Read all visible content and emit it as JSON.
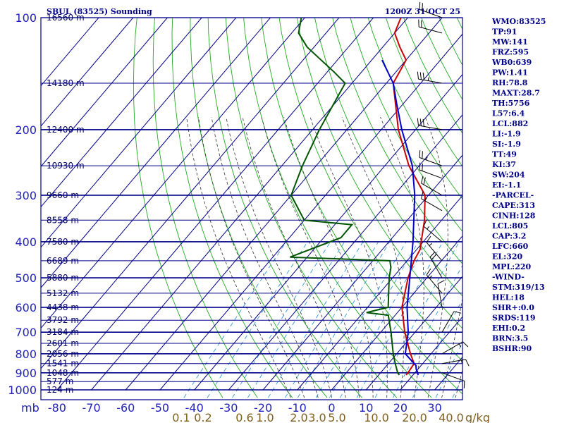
{
  "header": {
    "station": "SBUL (83525) Sounding",
    "time": "1200Z 31 OCT 25"
  },
  "chart_data": {
    "type": "skew-t",
    "ylabel": "mb",
    "pressure_ticks": [
      100,
      200,
      300,
      400,
      500,
      600,
      700,
      800,
      900,
      1000
    ],
    "temp_ticks": [
      -80,
      -70,
      -60,
      -50,
      -40,
      -30,
      -20,
      -10,
      0,
      10,
      20,
      30
    ],
    "temp_tick_labels": [
      "-80",
      "-70",
      "-60",
      "-50",
      "-40",
      "-30",
      "-20",
      "-10",
      "0",
      "10",
      "20",
      "30"
    ],
    "mixing_ratio_labels": [
      "0.1",
      "0.2",
      "0.6",
      "1.0",
      "2.0",
      "3.0",
      "5.0",
      "10.0",
      "20.0",
      "40.0"
    ],
    "mixing_ratio_unit": "g/kg",
    "height_levels": [
      {
        "p": 100,
        "label": "16560 m"
      },
      {
        "p": 150,
        "label": "14180 m"
      },
      {
        "p": 200,
        "label": "12400 m"
      },
      {
        "p": 250,
        "label": "10930 m"
      },
      {
        "p": 300,
        "label": "9660 m"
      },
      {
        "p": 350,
        "label": "8558 m"
      },
      {
        "p": 400,
        "label": "7580 m"
      },
      {
        "p": 450,
        "label": "6689 m"
      },
      {
        "p": 500,
        "label": "5880 m"
      },
      {
        "p": 550,
        "label": "5132 m"
      },
      {
        "p": 600,
        "label": "4438 m"
      },
      {
        "p": 650,
        "label": "3792 m"
      },
      {
        "p": 700,
        "label": "3184 m"
      },
      {
        "p": 750,
        "label": "2601 m"
      },
      {
        "p": 800,
        "label": "2056 m"
      },
      {
        "p": 850,
        "label": "1541 m"
      },
      {
        "p": 900,
        "label": "1048 m"
      },
      {
        "p": 950,
        "label": "577 m"
      },
      {
        "p": 1000,
        "label": "124 m"
      }
    ],
    "series": [
      {
        "color": "#cc0000",
        "kind": "temperature",
        "points": [
          {
            "p": 912,
            "t": 18.0
          },
          {
            "p": 900,
            "t": 18.0
          },
          {
            "p": 850,
            "t": 17.5
          },
          {
            "p": 800,
            "t": 14.0
          },
          {
            "p": 700,
            "t": 7.0
          },
          {
            "p": 600,
            "t": 0.0
          },
          {
            "p": 500,
            "t": -5.5
          },
          {
            "p": 450,
            "t": -8.0
          },
          {
            "p": 420,
            "t": -9.0
          },
          {
            "p": 350,
            "t": -15.0
          },
          {
            "p": 300,
            "t": -21.0
          },
          {
            "p": 250,
            "t": -33.0
          },
          {
            "p": 200,
            "t": -45.0
          },
          {
            "p": 150,
            "t": -58.0
          },
          {
            "p": 130,
            "t": -60.0
          },
          {
            "p": 120,
            "t": -65.0
          },
          {
            "p": 110,
            "t": -70.0
          },
          {
            "p": 100,
            "t": -72.0
          }
        ]
      },
      {
        "color": "#005500",
        "kind": "dewpoint",
        "points": [
          {
            "p": 912,
            "t": 16.0
          },
          {
            "p": 900,
            "t": 15.0
          },
          {
            "p": 850,
            "t": 12.0
          },
          {
            "p": 800,
            "t": 9.0
          },
          {
            "p": 700,
            "t": 3.0
          },
          {
            "p": 630,
            "t": -2.0
          },
          {
            "p": 620,
            "t": -9.0
          },
          {
            "p": 600,
            "t": -4.0
          },
          {
            "p": 500,
            "t": -11.0
          },
          {
            "p": 470,
            "t": -13.0
          },
          {
            "p": 450,
            "t": -15.0
          },
          {
            "p": 440,
            "t": -45.0
          },
          {
            "p": 390,
            "t": -35.0
          },
          {
            "p": 360,
            "t": -35.0
          },
          {
            "p": 350,
            "t": -50.0
          },
          {
            "p": 300,
            "t": -60.0
          },
          {
            "p": 250,
            "t": -64.0
          },
          {
            "p": 200,
            "t": -68.0
          },
          {
            "p": 150,
            "t": -72.0
          },
          {
            "p": 140,
            "t": -78.0
          },
          {
            "p": 120,
            "t": -92.0
          },
          {
            "p": 110,
            "t": -98.0
          },
          {
            "p": 100,
            "t": -101.0
          }
        ]
      },
      {
        "color": "#0000cc",
        "kind": "parcel",
        "points": [
          {
            "p": 912,
            "t": 21.5
          },
          {
            "p": 880,
            "t": 19.5
          },
          {
            "p": 860,
            "t": 18.5
          },
          {
            "p": 800,
            "t": 12.5
          },
          {
            "p": 700,
            "t": 8.0
          },
          {
            "p": 600,
            "t": 1.5
          },
          {
            "p": 500,
            "t": -5.0
          },
          {
            "p": 400,
            "t": -13.0
          },
          {
            "p": 300,
            "t": -24.0
          },
          {
            "p": 250,
            "t": -32.0
          },
          {
            "p": 200,
            "t": -44.0
          },
          {
            "p": 170,
            "t": -52.0
          },
          {
            "p": 150,
            "t": -58.0
          },
          {
            "p": 130,
            "t": -67.0
          }
        ]
      }
    ],
    "wind_barbs": [
      {
        "p": 100,
        "dir": 290,
        "spd": 25
      },
      {
        "p": 110,
        "dir": 285,
        "spd": 20
      },
      {
        "p": 150,
        "dir": 280,
        "spd": 35
      },
      {
        "p": 200,
        "dir": 280,
        "spd": 30
      },
      {
        "p": 250,
        "dir": 290,
        "spd": 25
      },
      {
        "p": 270,
        "dir": 290,
        "spd": 20
      },
      {
        "p": 300,
        "dir": 300,
        "spd": 20
      },
      {
        "p": 330,
        "dir": 300,
        "spd": 15
      },
      {
        "p": 400,
        "dir": 310,
        "spd": 15
      },
      {
        "p": 450,
        "dir": 320,
        "spd": 15
      },
      {
        "p": 500,
        "dir": 330,
        "spd": 20
      },
      {
        "p": 550,
        "dir": 320,
        "spd": 15
      },
      {
        "p": 600,
        "dir": 350,
        "spd": 10
      },
      {
        "p": 700,
        "dir": 30,
        "spd": 10
      },
      {
        "p": 800,
        "dir": 60,
        "spd": 15
      },
      {
        "p": 850,
        "dir": 80,
        "spd": 15
      },
      {
        "p": 900,
        "dir": 110,
        "spd": 10
      }
    ]
  },
  "stats": [
    "WMO:83525",
    "TP:91",
    "MW:141",
    "FRZ:595",
    "WB0:639",
    "PW:1.41",
    "RH:78.8",
    "MAXT:28.7",
    "TH:5756",
    "L57:6.4",
    "LCL:882",
    "LI:-1.9",
    "SI:-1.9",
    "TT:49",
    "KI:37",
    "SW:204",
    "EI:-1.1",
    "-PARCEL-",
    "CAPE:313",
    "CINH:128",
    "LCL:805",
    "CAP:3.2",
    "LFC:660",
    "EL:320",
    "MPL:220",
    "-WIND-",
    "STM:319/13",
    "HEL:18",
    "SHR+:0.0",
    "SRDS:119",
    "EHI:0.2",
    "BRN:3.5",
    "BSHR:90"
  ],
  "colors": {
    "isobar": "#000088",
    "isotherm": "#000088",
    "dry_adiabat": "#22aa22",
    "moist_adiabat": "#333333",
    "mixing_ratio": "#3399dd",
    "text": "#000088"
  }
}
